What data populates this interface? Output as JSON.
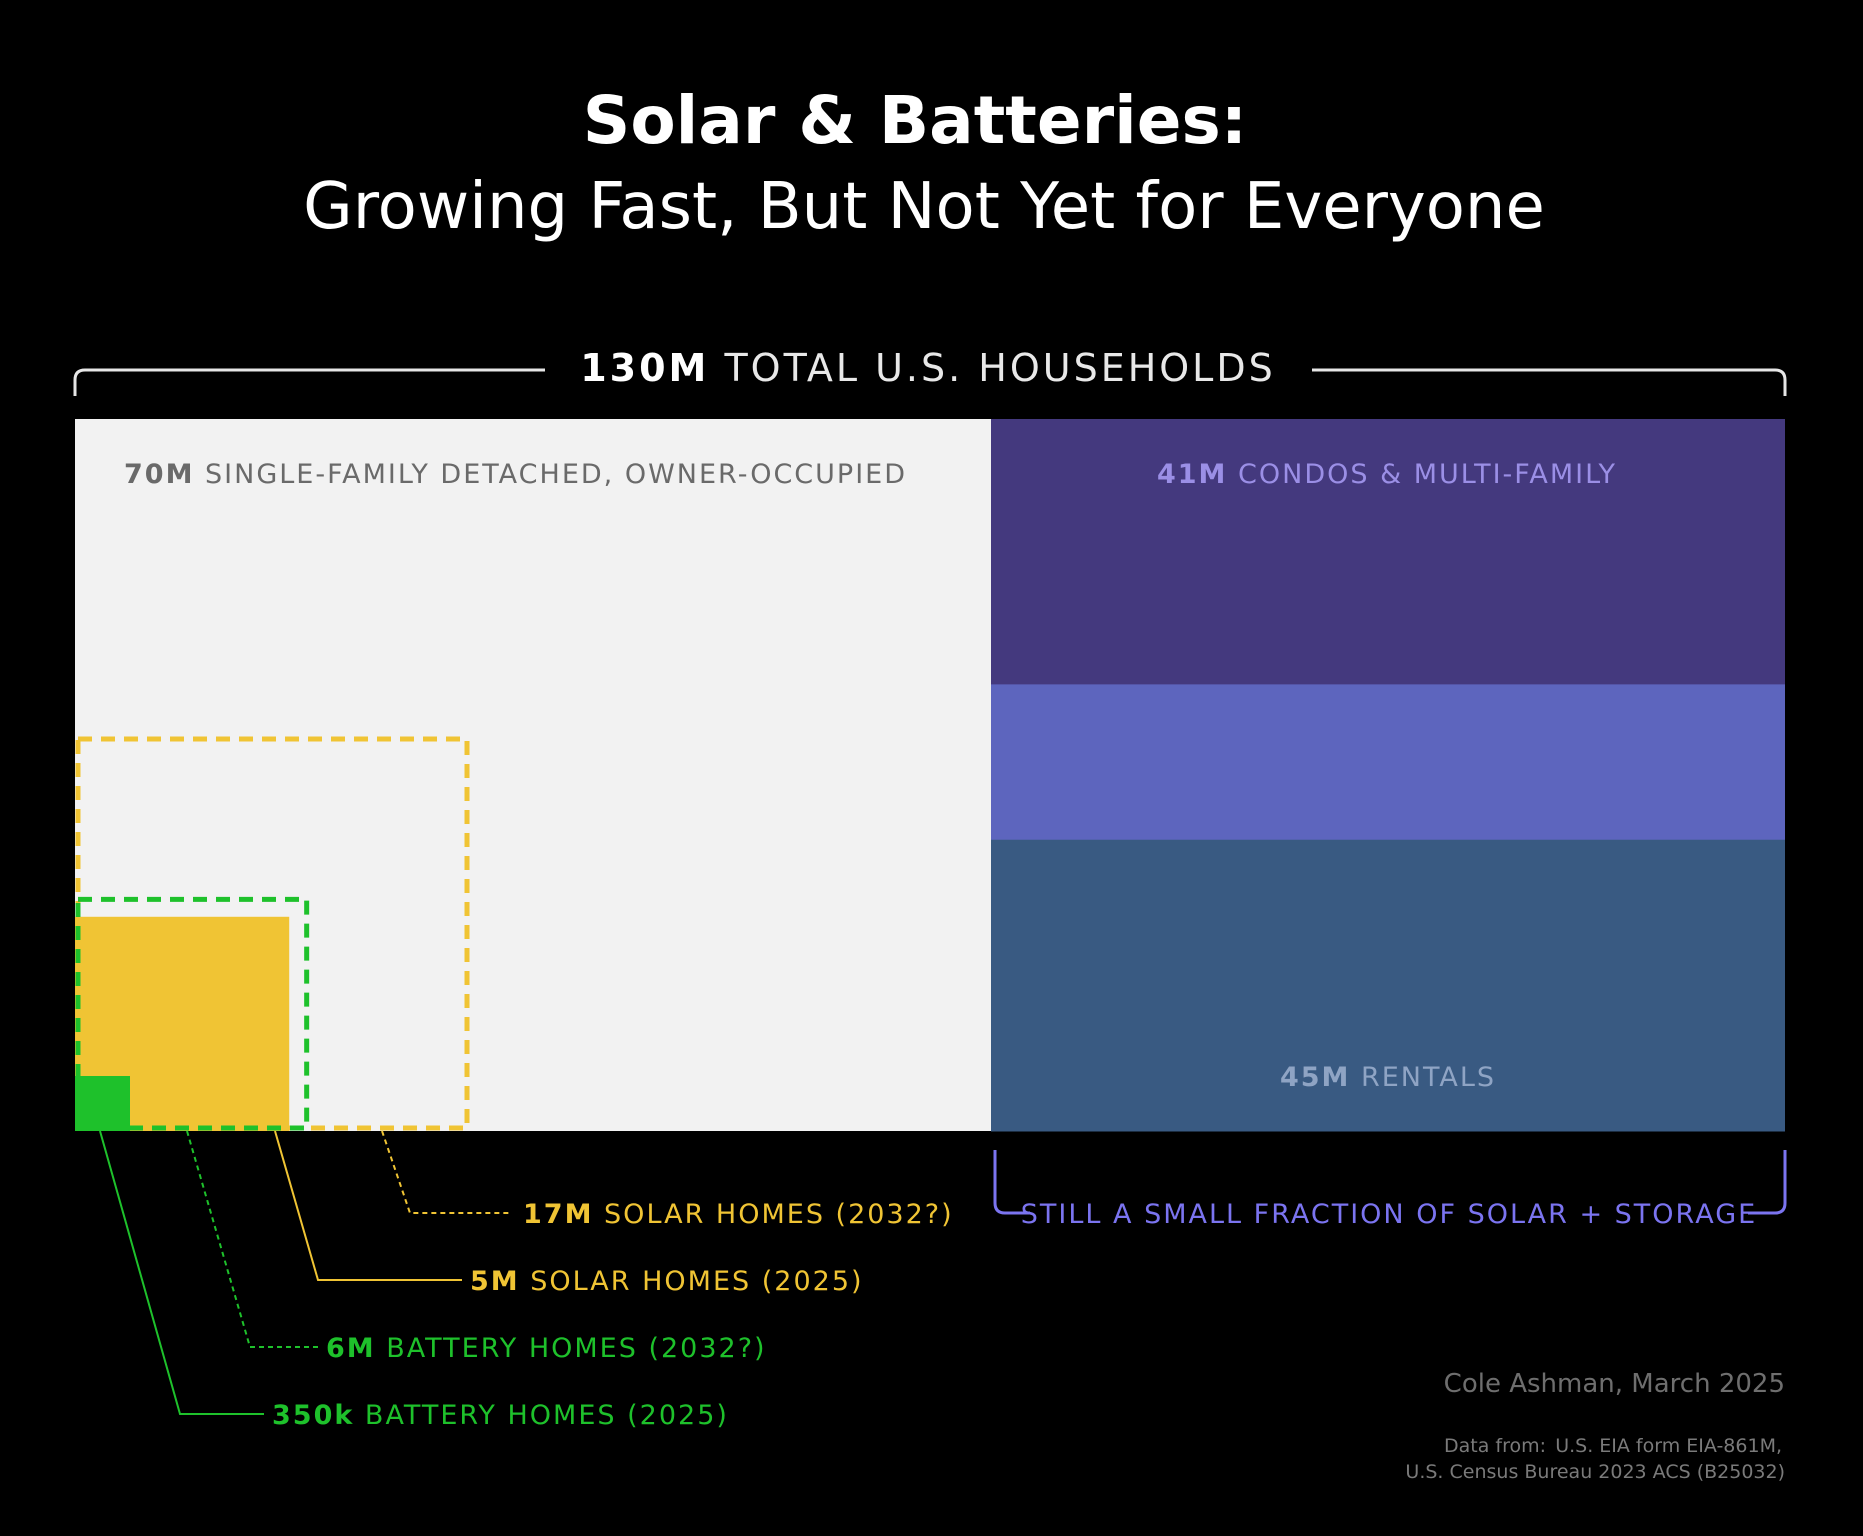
{
  "chart_data": {
    "type": "nested-area",
    "title": "Solar & Batteries:",
    "subtitle": "Growing Fast, But Not Yet for Everyone",
    "total": {
      "value_m": 130,
      "bold": "130M",
      "label": "TOTAL U.S. HOUSEHOLDS"
    },
    "segments": [
      {
        "name": "single-family",
        "value_m": 70,
        "bold": "70M",
        "label": "SINGLE-FAMILY DETACHED, OWNER-OCCUPIED",
        "color": "#f2f2f2",
        "text_color": "#6a6a6a"
      },
      {
        "name": "condos",
        "value_m": 41,
        "bold": "41M",
        "label": "CONDOS & MULTI-FAMILY",
        "color": "#44397e",
        "text_color": "#9b8fe6"
      },
      {
        "name": "middle",
        "value_m": 24,
        "bold": "",
        "label": "",
        "color": "#5d65be",
        "text_color": "#ffffff"
      },
      {
        "name": "rentals",
        "value_m": 45,
        "bold": "45M",
        "label": "RENTALS",
        "color": "#395a82",
        "text_color": "#8fa4c4"
      }
    ],
    "squares": [
      {
        "name": "solar-2032",
        "value_m": 17,
        "bold": "17M",
        "label": "SOLAR HOMES (2032?)",
        "style": "dashed",
        "color": "#f0c434"
      },
      {
        "name": "solar-2025",
        "value_m": 5,
        "bold": "5M",
        "label": "SOLAR HOMES (2025)",
        "style": "solid",
        "color": "#f0c434"
      },
      {
        "name": "battery-2032",
        "value_m": 6,
        "bold": "6M",
        "label": "BATTERY HOMES (2032?)",
        "style": "dashed",
        "color": "#1ec12b"
      },
      {
        "name": "battery-2025",
        "value_m": 0.35,
        "bold": "350k",
        "label": "BATTERY HOMES (2025)",
        "style": "solid",
        "color": "#1ec12b"
      }
    ],
    "bracket_note": "STILL A SMALL FRACTION OF SOLAR + STORAGE",
    "note_color": "#7b74f0"
  },
  "credit": "Cole Ashman, March 2025",
  "source": {
    "label": "Data from:",
    "line1": "U.S. EIA form EIA-861M,",
    "line2": "U.S. Census Bureau 2023 ACS (B25032)"
  }
}
